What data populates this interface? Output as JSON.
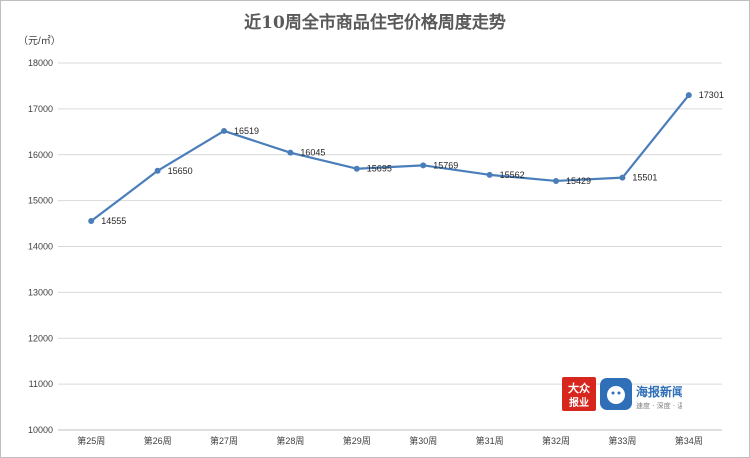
{
  "chart_data": {
    "type": "line",
    "title": "近10周全市商品住宅价格周度走势",
    "unit_label": "（元/㎡）",
    "categories": [
      "第25周",
      "第26周",
      "第27周",
      "第28周",
      "第29周",
      "第30周",
      "第31周",
      "第32周",
      "第33周",
      "第34周"
    ],
    "series": [
      {
        "values": [
          14555,
          15650,
          16519,
          16045,
          15695,
          15769,
          15562,
          15429,
          15501,
          17301
        ]
      }
    ],
    "yticks": [
      10000,
      11000,
      12000,
      13000,
      14000,
      15000,
      16000,
      17000,
      18000
    ],
    "ylim": [
      10000,
      18000
    ],
    "grid": true,
    "line_color": "#4a7ebb"
  },
  "branding": {
    "logo1_top": "大众",
    "logo1_bottom": "报业",
    "logo2_name": "海报新闻",
    "logo2_tagline": "速度 · 深度 · 温度"
  }
}
